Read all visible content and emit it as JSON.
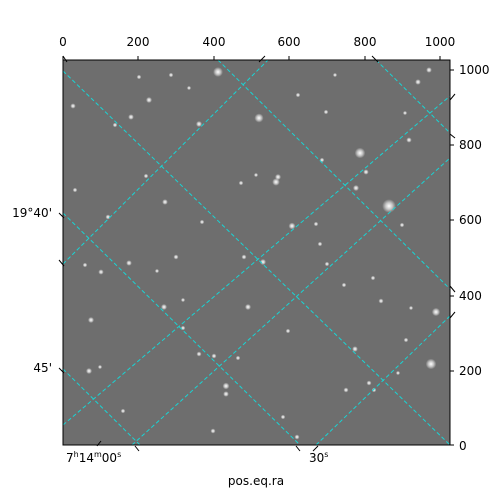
{
  "image": {
    "description_type": "astronomical sky image with RA/Dec coordinate grid",
    "colors": {
      "background": "#6f6f6f",
      "grid": "#19d4d4",
      "stars": "#ffffff"
    }
  },
  "axes": {
    "top_ticks": [
      "0",
      "200",
      "400",
      "600",
      "800",
      "1000"
    ],
    "right_ticks": [
      "1000",
      "800",
      "600",
      "400",
      "200",
      "0"
    ],
    "dec_labels": [
      "19°40'",
      "45'"
    ],
    "ra_label_1": {
      "h": "7",
      "hs": "h",
      "m": "14",
      "ms": "m",
      "s": "00",
      "ss": "s"
    },
    "ra_label_2": {
      "s": "30",
      "ss": "s"
    },
    "xlabel": "pos.eq.ra"
  }
}
